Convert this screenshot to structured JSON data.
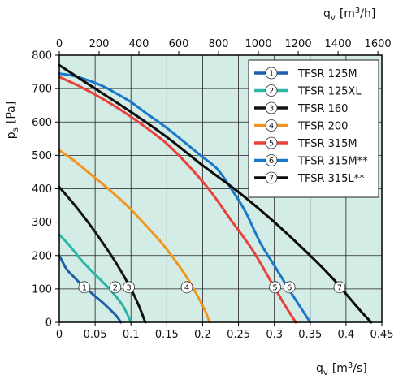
{
  "chart_data": {
    "type": "line",
    "title": "",
    "xlabel": "q",
    "xlabel_sub": "v",
    "xlabel_unit": "[m",
    "xlabel_unit_sup": "3",
    "xlabel_unit_end": "/s]",
    "x2label": "q",
    "x2label_sub": "v",
    "x2label_unit": "[m",
    "x2label_unit_sup": "3",
    "x2label_unit_end": "/h]",
    "ylabel": "p",
    "ylabel_sub": "s",
    "ylabel_unit": "[Pa]",
    "xlim": [
      0,
      0.45
    ],
    "ylim": [
      0,
      800
    ],
    "x2lim": [
      0,
      1620
    ],
    "x_ticks": [
      0,
      0.05,
      0.1,
      0.15,
      0.2,
      0.25,
      0.3,
      0.35,
      0.4,
      0.45
    ],
    "x_tick_labels": [
      "0",
      "0.05",
      "0.1",
      "0.15",
      "0.2",
      "0.25",
      "0.3",
      "0.35",
      "0.4",
      "0.45"
    ],
    "y_ticks": [
      0,
      100,
      200,
      300,
      400,
      500,
      600,
      700,
      800
    ],
    "y_tick_labels": [
      "0",
      "100",
      "200",
      "300",
      "400",
      "500",
      "600",
      "700",
      "800"
    ],
    "x2_ticks": [
      0,
      200,
      400,
      600,
      800,
      1000,
      1200,
      1400,
      1600
    ],
    "x2_tick_labels": [
      "0",
      "200",
      "400",
      "600",
      "800",
      "1000",
      "1200",
      "1400",
      "1600"
    ],
    "grid": true,
    "background": "#d4ece6",
    "legend_position": "top-right",
    "series": [
      {
        "name": "TFSR 125M",
        "number": "1",
        "color": "#1f5fa8",
        "x": [
          0,
          0.01,
          0.02,
          0.03,
          0.04,
          0.05,
          0.06,
          0.07,
          0.08,
          0.086
        ],
        "y": [
          200,
          160,
          137,
          115,
          97,
          78,
          60,
          40,
          18,
          0
        ]
      },
      {
        "name": "TFSR 125XL",
        "number": "2",
        "color": "#2ab5a5",
        "x": [
          0,
          0.01,
          0.02,
          0.03,
          0.04,
          0.05,
          0.06,
          0.07,
          0.08,
          0.09,
          0.1
        ],
        "y": [
          262,
          240,
          215,
          188,
          165,
          143,
          122,
          100,
          75,
          45,
          0
        ]
      },
      {
        "name": "TFSR 160",
        "number": "3",
        "color": "#111111",
        "x": [
          0,
          0.02,
          0.04,
          0.06,
          0.08,
          0.1,
          0.11,
          0.12
        ],
        "y": [
          405,
          355,
          300,
          240,
          175,
          100,
          55,
          0
        ]
      },
      {
        "name": "TFSR 200",
        "number": "4",
        "color": "#f0961e",
        "x": [
          0,
          0.02,
          0.04,
          0.06,
          0.08,
          0.1,
          0.12,
          0.14,
          0.16,
          0.18,
          0.2,
          0.21
        ],
        "y": [
          515,
          485,
          450,
          415,
          378,
          338,
          292,
          245,
          190,
          128,
          50,
          0
        ]
      },
      {
        "name": "TFSR 315M",
        "number": "5",
        "color": "#e8403a",
        "x": [
          0,
          0.03,
          0.06,
          0.09,
          0.12,
          0.15,
          0.18,
          0.21,
          0.24,
          0.27,
          0.3,
          0.315,
          0.33
        ],
        "y": [
          735,
          705,
          670,
          630,
          585,
          535,
          470,
          395,
          305,
          215,
          105,
          50,
          0
        ]
      },
      {
        "name": "TFSR 315M**",
        "number": "6",
        "color": "#1a78c8",
        "x": [
          0,
          0.02,
          0.04,
          0.06,
          0.08,
          0.1,
          0.12,
          0.14,
          0.16,
          0.18,
          0.2,
          0.22,
          0.24,
          0.26,
          0.28,
          0.3,
          0.32,
          0.335,
          0.35
        ],
        "y": [
          745,
          738,
          725,
          708,
          685,
          660,
          628,
          598,
          565,
          530,
          495,
          460,
          400,
          330,
          240,
          170,
          100,
          50,
          0
        ]
      },
      {
        "name": "TFSR 315L**",
        "number": "7",
        "color": "#0a0a0a",
        "x": [
          0,
          0.05,
          0.1,
          0.15,
          0.2,
          0.25,
          0.3,
          0.35,
          0.38,
          0.4,
          0.42,
          0.435
        ],
        "y": [
          770,
          700,
          630,
          555,
          470,
          390,
          300,
          200,
          135,
          85,
          35,
          0
        ]
      }
    ],
    "curve_markers": [
      {
        "label": "1",
        "x": 0.035,
        "y": 105
      },
      {
        "label": "2",
        "x": 0.078,
        "y": 105
      },
      {
        "label": "3",
        "x": 0.097,
        "y": 105
      },
      {
        "label": "4",
        "x": 0.178,
        "y": 105
      },
      {
        "label": "5",
        "x": 0.301,
        "y": 105
      },
      {
        "label": "6",
        "x": 0.321,
        "y": 105
      },
      {
        "label": "7",
        "x": 0.391,
        "y": 105
      }
    ]
  }
}
